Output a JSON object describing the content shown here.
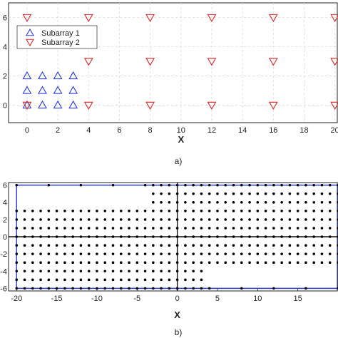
{
  "chart_data": [
    {
      "type": "scatter",
      "caption": "a)",
      "xlabel": "X",
      "ylabel": "",
      "xlim": [
        -1.2,
        20.2
      ],
      "ylim": [
        -1.2,
        7
      ],
      "grid": true,
      "xticks": [
        "0",
        "2",
        "4",
        "6",
        "8",
        "10",
        "12",
        "14",
        "16",
        "18",
        "20"
      ],
      "yticks": [
        "0",
        "2",
        "4",
        "6"
      ],
      "legend": {
        "placement": "top-left"
      },
      "series": [
        {
          "name": "Subarray 1",
          "marker": "triangle-up",
          "color": "#2b3bd6",
          "points": [
            [
              0,
              0
            ],
            [
              1,
              0
            ],
            [
              2,
              0
            ],
            [
              3,
              0
            ],
            [
              0,
              1
            ],
            [
              1,
              1
            ],
            [
              2,
              1
            ],
            [
              3,
              1
            ],
            [
              0,
              2
            ],
            [
              1,
              2
            ],
            [
              2,
              2
            ],
            [
              3,
              2
            ]
          ]
        },
        {
          "name": "Subarray 2",
          "marker": "triangle-down",
          "color": "#d62b2b",
          "points": [
            [
              0,
              0
            ],
            [
              4,
              0
            ],
            [
              8,
              0
            ],
            [
              12,
              0
            ],
            [
              16,
              0
            ],
            [
              20,
              0
            ],
            [
              4,
              3
            ],
            [
              8,
              3
            ],
            [
              12,
              3
            ],
            [
              16,
              3
            ],
            [
              20,
              3
            ],
            [
              0,
              6
            ],
            [
              4,
              6
            ],
            [
              8,
              6
            ],
            [
              12,
              6
            ],
            [
              16,
              6
            ],
            [
              20,
              6
            ]
          ]
        }
      ]
    },
    {
      "type": "scatter",
      "caption": "b)",
      "xlabel": "X",
      "ylabel": "",
      "xlim": [
        -21,
        20
      ],
      "ylim": [
        -6.3,
        6.3
      ],
      "grid": false,
      "xticks": [
        "-20",
        "-15",
        "-10",
        "-5",
        "0",
        "5",
        "10",
        "15"
      ],
      "yticks": [
        "-6",
        "-4",
        "-2",
        "0",
        "2",
        "4",
        "6"
      ],
      "color": "#000000",
      "outline_color": "#2b3bd6",
      "series": [
        {
          "name": "",
          "description_regions": "difference coarray lags",
          "regions": [
            {
              "x": [
                -3,
                20
              ],
              "y": [
                -3,
                6
              ]
            },
            {
              "x": [
                -20,
                3
              ],
              "y": [
                -6,
                3
              ]
            }
          ],
          "sparse_points": [
            [
              -20,
              6
            ],
            [
              -16,
              6
            ],
            [
              -12,
              6
            ],
            [
              -8,
              6
            ],
            [
              -4,
              6
            ],
            [
              -16,
              3
            ],
            [
              -12,
              3
            ],
            [
              -8,
              3
            ],
            [
              -4,
              3
            ],
            [
              -20,
              3
            ],
            [
              4,
              -3
            ],
            [
              8,
              -3
            ],
            [
              12,
              -3
            ],
            [
              16,
              -3
            ],
            [
              20,
              -3
            ],
            [
              4,
              -6
            ],
            [
              8,
              -6
            ],
            [
              12,
              -6
            ],
            [
              16,
              -6
            ],
            [
              20,
              -6
            ]
          ]
        }
      ]
    }
  ]
}
